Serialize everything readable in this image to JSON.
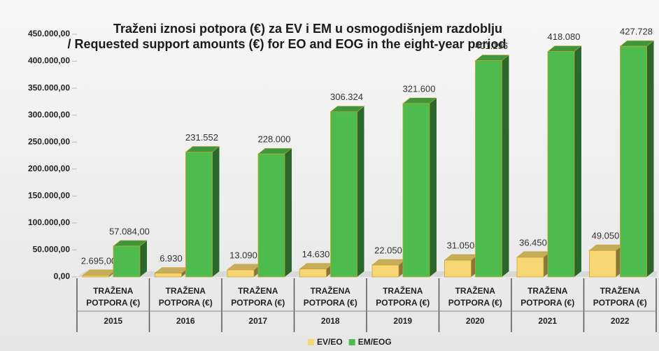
{
  "chart_data": {
    "type": "bar3d",
    "title": "Traženi iznosi potpora (€) za EV i EM u osmogodišnjem razdoblju",
    "subtitle": "/ Requested support amounts (€) for EO and EOG in the eight-year period",
    "categories": [
      "2015",
      "2016",
      "2017",
      "2018",
      "2019",
      "2020",
      "2021",
      "2022"
    ],
    "category_sublabels": [
      "TRAŽENA POTPORA (€)",
      "TRAŽENA POTPORA (€)",
      "TRAŽENA POTPORA (€)",
      "TRAŽENA POTPORA (€)",
      "TRAŽENA POTPORA (€)",
      "TRAŽENA POTPORA (€)",
      "TRAŽENA POTPORA (€)",
      "TRAŽENA POTPORA (€)"
    ],
    "series": [
      {
        "name": "EV/EO",
        "color": "#f7d774",
        "values": [
          2695,
          6930,
          13090,
          14630,
          22050,
          31050,
          36450,
          49050
        ],
        "value_labels": [
          "2.695,00",
          "6.930",
          "13.090",
          "14.630",
          "22.050",
          "31.050",
          "36.450",
          "49.050"
        ]
      },
      {
        "name": "EM/EOG",
        "color": "#4dbb4d",
        "values": [
          57084,
          231552,
          228000,
          306324,
          321600,
          401196,
          418080,
          427728
        ],
        "value_labels": [
          "57.084,00",
          "231.552",
          "228.000",
          "306.324",
          "321.600",
          "401.196",
          "418.080",
          "427.728"
        ]
      }
    ],
    "ylim": [
      0,
      450000
    ],
    "yticks": [
      {
        "value": 0,
        "label": "0,00"
      },
      {
        "value": 50000,
        "label": "50.000,00"
      },
      {
        "value": 100000,
        "label": "100.000,00"
      },
      {
        "value": 150000,
        "label": "150.000,00"
      },
      {
        "value": 200000,
        "label": "200.000,00"
      },
      {
        "value": 250000,
        "label": "250.000,00"
      },
      {
        "value": 300000,
        "label": "300.000,00"
      },
      {
        "value": 350000,
        "label": "350.000,00"
      },
      {
        "value": 400000,
        "label": "400.000,00"
      },
      {
        "value": 450000,
        "label": "450.000,00"
      }
    ],
    "legend": "bottom"
  }
}
